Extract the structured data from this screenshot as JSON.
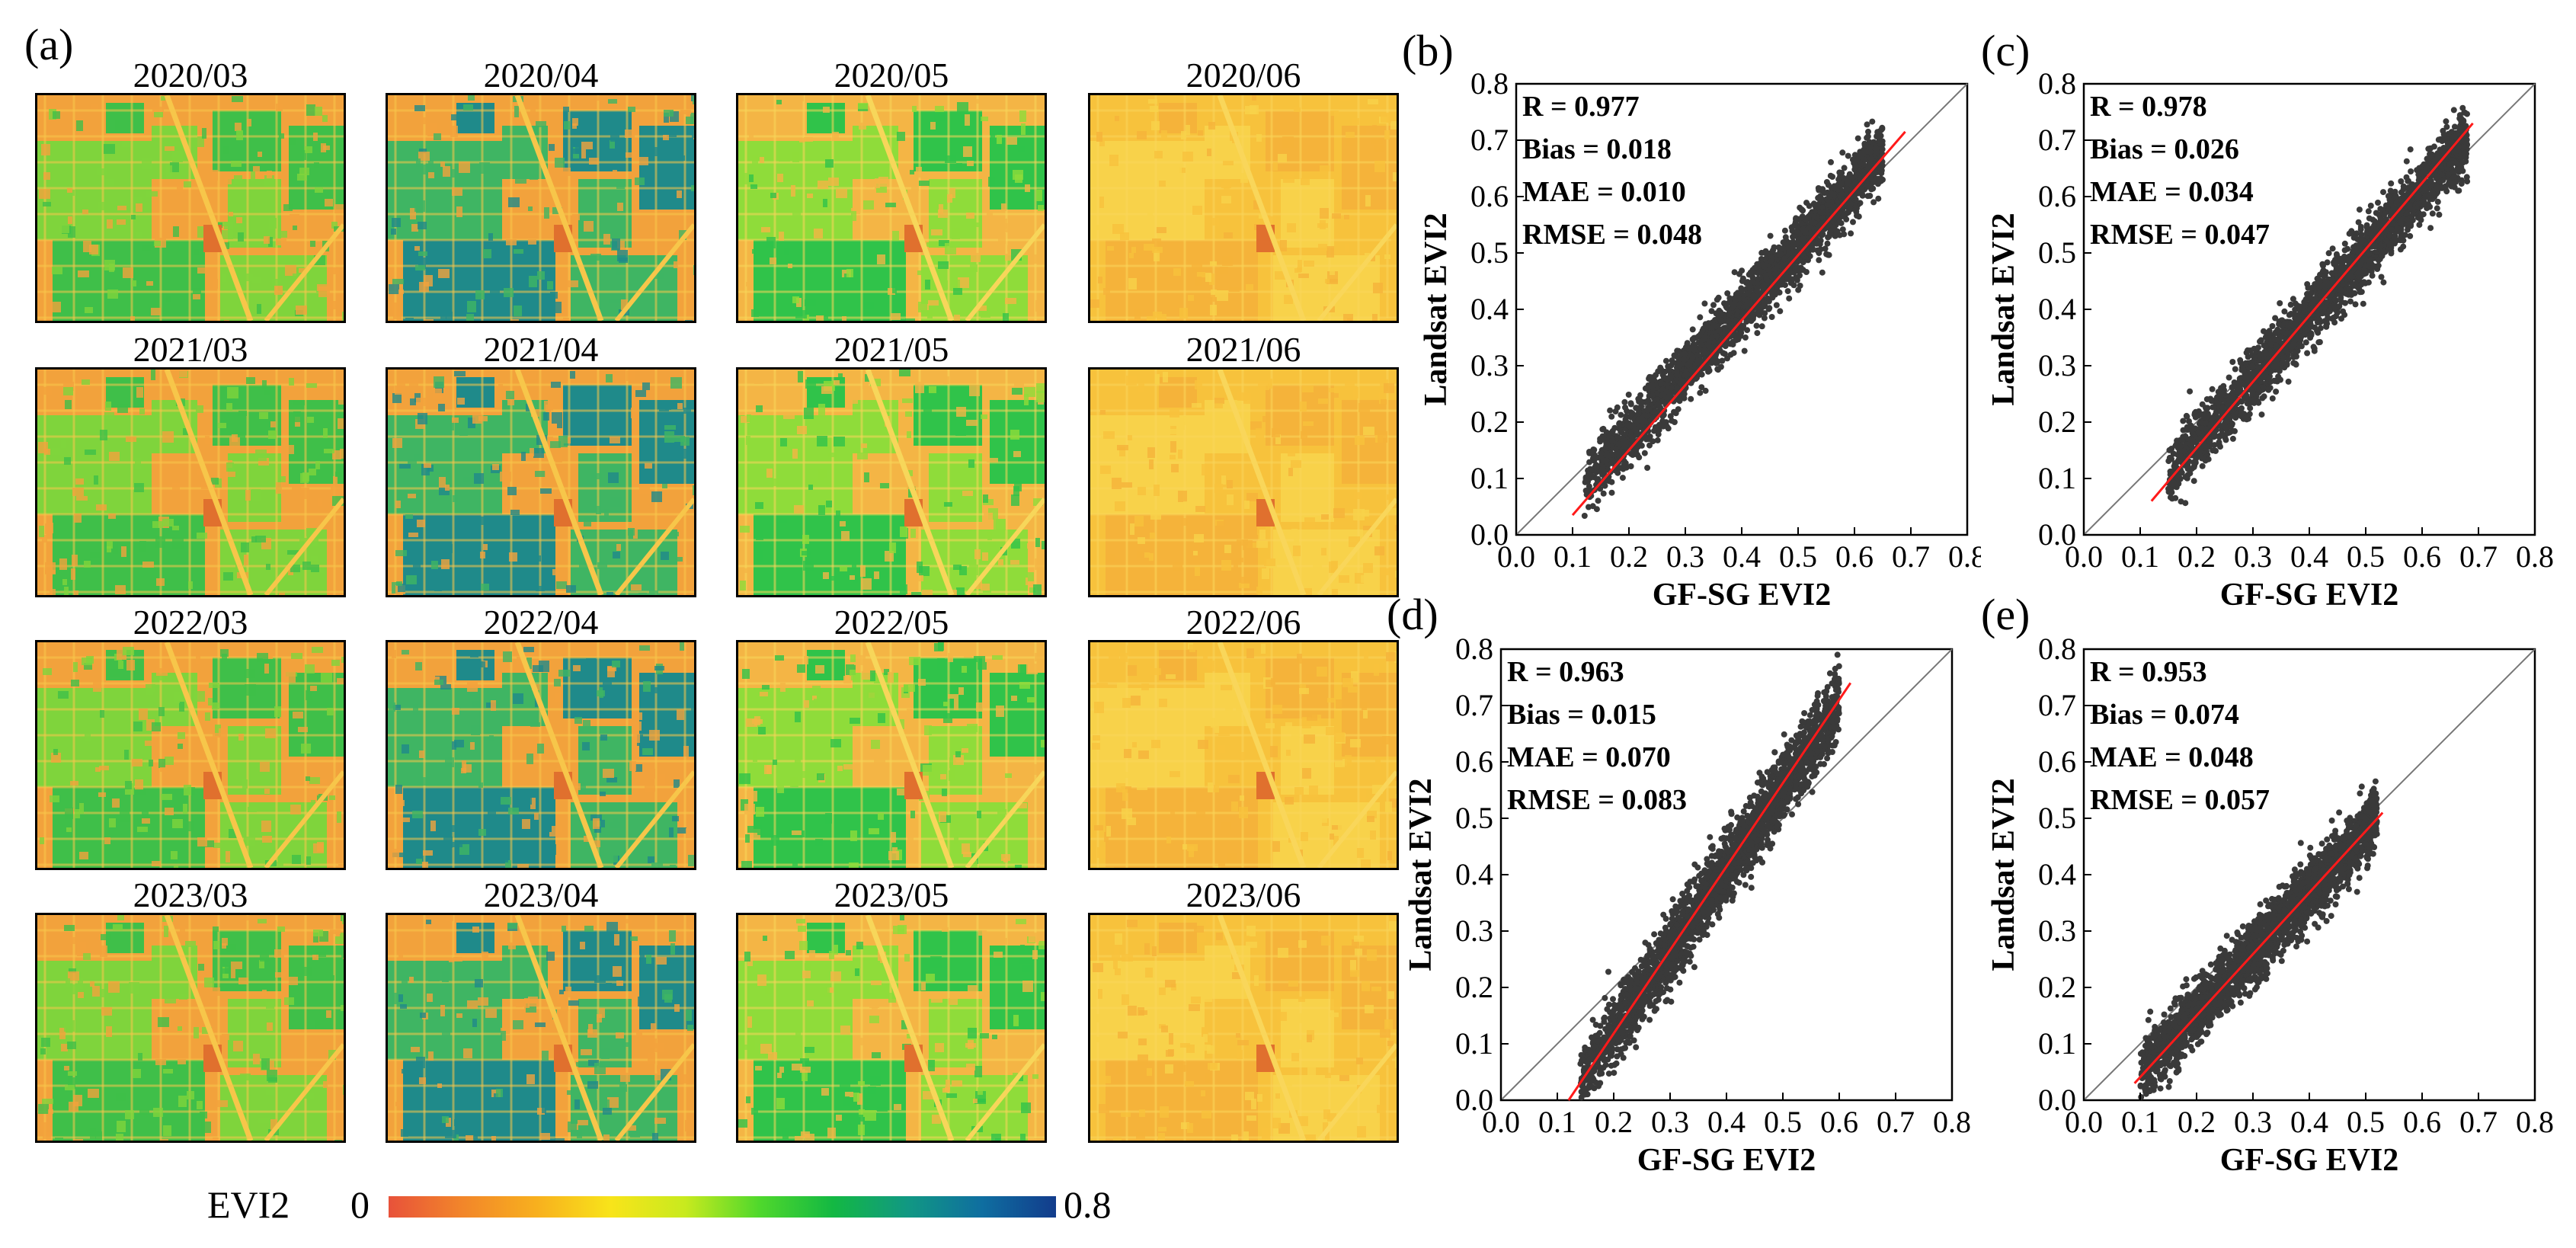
{
  "panel_a": {
    "label": "(a)",
    "map_titles": [
      [
        "2020/03",
        "2020/04",
        "2020/05",
        "2020/06"
      ],
      [
        "2021/03",
        "2021/04",
        "2021/05",
        "2021/06"
      ],
      [
        "2022/03",
        "2022/04",
        "2022/05",
        "2022/06"
      ],
      [
        "2023/03",
        "2023/04",
        "2023/05",
        "2023/06"
      ]
    ],
    "colorbar": {
      "title": "EVI2",
      "min_label": "0",
      "max_label": "0.8",
      "range": [
        0,
        0.8
      ],
      "colors": [
        "#e8523a",
        "#f2862a",
        "#f8b01e",
        "#f8e41a",
        "#c8ea1e",
        "#4fd82c",
        "#13b843",
        "#119883",
        "#0f6ea0",
        "#123c8c"
      ]
    }
  },
  "chart_data": [
    {
      "type": "scatter",
      "label": "(b)",
      "xlabel": "GF-SG EVI2",
      "ylabel": "Landsat EVI2",
      "xlim": [
        0,
        0.8
      ],
      "ylim": [
        0,
        0.8
      ],
      "ticks": [
        "0.0",
        "0.1",
        "0.2",
        "0.3",
        "0.4",
        "0.5",
        "0.6",
        "0.7",
        "0.8"
      ],
      "stats": [
        "R = 0.977",
        "Bias = 0.018",
        "MAE = 0.010",
        "RMSE = 0.048"
      ],
      "fit_line": {
        "x": [
          0.1,
          0.69
        ],
        "y": [
          0.035,
          0.715
        ]
      },
      "cloud": {
        "x_range": [
          0.12,
          0.65
        ],
        "slope": 1.1,
        "intercept": -0.04,
        "spread": 0.05
      },
      "points_color": "#3a3a3a",
      "fit_color": "#ff1a1a"
    },
    {
      "type": "scatter",
      "label": "(c)",
      "xlabel": "GF-SG EVI2",
      "ylabel": "Landsat EVI2",
      "xlim": [
        0,
        0.8
      ],
      "ylim": [
        0,
        0.8
      ],
      "ticks": [
        "0.0",
        "0.1",
        "0.2",
        "0.3",
        "0.4",
        "0.5",
        "0.6",
        "0.7",
        "0.8"
      ],
      "stats": [
        "R = 0.978",
        "Bias = 0.026",
        "MAE = 0.034",
        "RMSE = 0.047"
      ],
      "fit_line": {
        "x": [
          0.12,
          0.69
        ],
        "y": [
          0.06,
          0.73
        ]
      },
      "cloud": {
        "x_range": [
          0.15,
          0.68
        ],
        "slope": 1.12,
        "intercept": -0.06,
        "spread": 0.05
      },
      "points_color": "#3a3a3a",
      "fit_color": "#ff1a1a"
    },
    {
      "type": "scatter",
      "label": "(d)",
      "xlabel": "GF-SG EVI2",
      "ylabel": "Landsat EVI2",
      "xlim": [
        0,
        0.8
      ],
      "ylim": [
        0,
        0.8
      ],
      "ticks": [
        "0.0",
        "0.1",
        "0.2",
        "0.3",
        "0.4",
        "0.5",
        "0.6",
        "0.7",
        "0.8"
      ],
      "stats": [
        "R = 0.963",
        "Bias = 0.015",
        "MAE = 0.070",
        "RMSE = 0.083"
      ],
      "fit_line": {
        "x": [
          0.12,
          0.62
        ],
        "y": [
          0.0,
          0.74
        ]
      },
      "cloud": {
        "x_range": [
          0.14,
          0.6
        ],
        "slope": 1.45,
        "intercept": -0.17,
        "spread": 0.055
      },
      "points_color": "#3a3a3a",
      "fit_color": "#ff1a1a"
    },
    {
      "type": "scatter",
      "label": "(e)",
      "xlabel": "GF-SG EVI2",
      "ylabel": "Landsat EVI2",
      "xlim": [
        0,
        0.8
      ],
      "ylim": [
        0,
        0.8
      ],
      "ticks": [
        "0.0",
        "0.1",
        "0.2",
        "0.3",
        "0.4",
        "0.5",
        "0.6",
        "0.7",
        "0.8"
      ],
      "stats": [
        "R = 0.953",
        "Bias = 0.074",
        "MAE = 0.048",
        "RMSE = 0.057"
      ],
      "fit_line": {
        "x": [
          0.09,
          0.53
        ],
        "y": [
          0.03,
          0.51
        ]
      },
      "cloud": {
        "x_range": [
          0.1,
          0.52
        ],
        "slope": 1.07,
        "intercept": -0.06,
        "spread": 0.05
      },
      "points_color": "#3a3a3a",
      "fit_color": "#ff1a1a"
    }
  ]
}
